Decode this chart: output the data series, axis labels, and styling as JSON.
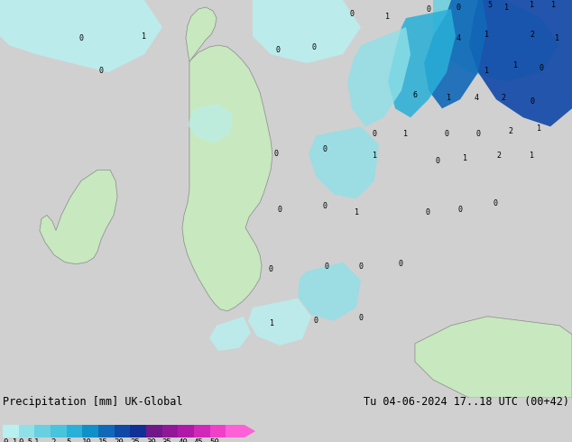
{
  "title_left": "Precipitation [mm] UK-Global",
  "title_right": "Tu 04-06-2024 17..18 UTC (00+42)",
  "colorbar_labels": [
    "0.1",
    "0.5",
    "1",
    "2",
    "5",
    "10",
    "15",
    "20",
    "25",
    "30",
    "35",
    "40",
    "45",
    "50"
  ],
  "colorbar_colors": [
    "#b8f0f0",
    "#90e0e8",
    "#68d0e0",
    "#48c4dc",
    "#28b0d8",
    "#1090c8",
    "#1068b8",
    "#1048a8",
    "#103098",
    "#701888",
    "#901898",
    "#b018a8",
    "#d028b8",
    "#f040c8",
    "#ff60d8"
  ],
  "arrow_color": "#ff60d8",
  "sea_color": "#d0d0d0",
  "land_color": "#c8e8c0",
  "bg_color": "#d0d0d0",
  "font_size": 8.5,
  "fig_width": 6.34,
  "fig_height": 4.9,
  "dpi": 100
}
